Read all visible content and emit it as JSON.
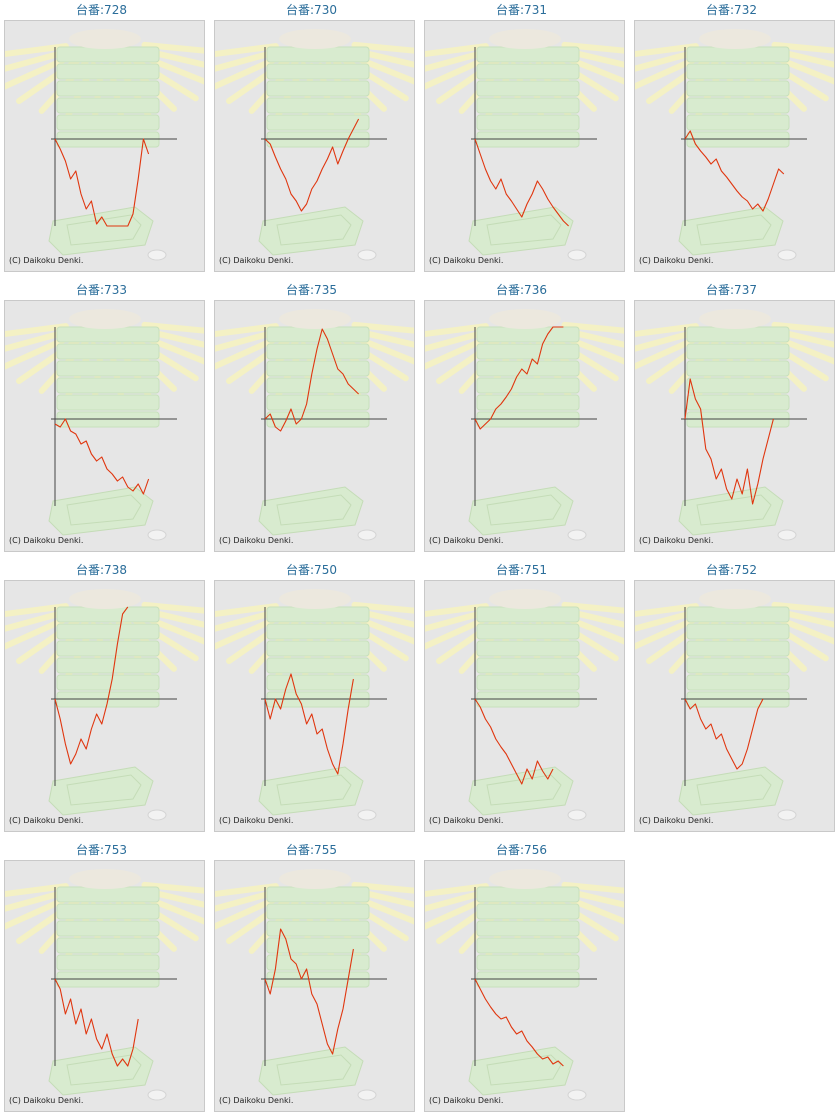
{
  "page": {
    "copyright": "(C) Daikoku Denki."
  },
  "chart_data": [
    {
      "type": "line",
      "title": "台番:728",
      "values": [
        0,
        -10,
        -22,
        -40,
        -32,
        -55,
        -70,
        -62,
        -85,
        -78,
        -95,
        -88,
        -98,
        -90,
        -100,
        -75,
        -40,
        0,
        -15
      ]
    },
    {
      "type": "line",
      "title": "台番:730",
      "values": [
        0,
        -5,
        -18,
        -30,
        -40,
        -55,
        -62,
        -72,
        -65,
        -50,
        -42,
        -30,
        -20,
        -8,
        -25,
        -12,
        0,
        10,
        20
      ]
    },
    {
      "type": "line",
      "title": "台番:731",
      "values": [
        0,
        -15,
        -30,
        -42,
        -50,
        -40,
        -55,
        -62,
        -70,
        -78,
        -65,
        -55,
        -42,
        -50,
        -60,
        -68,
        -75,
        -82,
        -88
      ]
    },
    {
      "type": "line",
      "title": "台番:732",
      "values": [
        0,
        8,
        -5,
        -12,
        -18,
        -25,
        -20,
        -32,
        -38,
        -45,
        -52,
        -58,
        -62,
        -70,
        -65,
        -72,
        -60,
        -45,
        -30,
        -35
      ]
    },
    {
      "type": "line",
      "title": "台番:733",
      "values": [
        -5,
        -8,
        0,
        -12,
        -15,
        -25,
        -22,
        -35,
        -42,
        -38,
        -50,
        -55,
        -62,
        -58,
        -68,
        -72,
        -65,
        -75,
        -60
      ]
    },
    {
      "type": "line",
      "title": "台番:735",
      "values": [
        0,
        5,
        -8,
        -12,
        -2,
        10,
        -5,
        0,
        15,
        45,
        70,
        90,
        80,
        65,
        50,
        45,
        35,
        30,
        25
      ]
    },
    {
      "type": "line",
      "title": "台番:736",
      "values": [
        0,
        -10,
        -5,
        0,
        10,
        15,
        22,
        30,
        42,
        50,
        45,
        60,
        55,
        75,
        85,
        95,
        110,
        120
      ]
    },
    {
      "type": "line",
      "title": "台番:737",
      "values": [
        0,
        40,
        20,
        10,
        -30,
        -40,
        -60,
        -50,
        -70,
        -80,
        -60,
        -75,
        -50,
        -85,
        -65,
        -40,
        -20,
        0
      ]
    },
    {
      "type": "line",
      "title": "台番:738",
      "values": [
        0,
        -20,
        -45,
        -65,
        -55,
        -40,
        -50,
        -30,
        -15,
        -25,
        -5,
        20,
        55,
        85,
        110
      ]
    },
    {
      "type": "line",
      "title": "台番:750",
      "values": [
        0,
        -20,
        0,
        -10,
        10,
        25,
        5,
        -5,
        -25,
        -15,
        -35,
        -30,
        -50,
        -65,
        -75,
        -45,
        -10,
        20
      ]
    },
    {
      "type": "line",
      "title": "台番:751",
      "values": [
        0,
        -8,
        -20,
        -28,
        -40,
        -48,
        -55,
        -65,
        -75,
        -85,
        -70,
        -80,
        -62,
        -72,
        -80,
        -70
      ]
    },
    {
      "type": "line",
      "title": "台番:752",
      "values": [
        0,
        -10,
        -5,
        -20,
        -30,
        -25,
        -40,
        -35,
        -50,
        -60,
        -70,
        -65,
        -50,
        -30,
        -10,
        0
      ]
    },
    {
      "type": "line",
      "title": "台番:753",
      "values": [
        0,
        -10,
        -35,
        -20,
        -45,
        -30,
        -55,
        -40,
        -60,
        -70,
        -55,
        -75,
        -95,
        -80,
        -90,
        -70,
        -40
      ]
    },
    {
      "type": "line",
      "title": "台番:755",
      "values": [
        0,
        -15,
        10,
        50,
        40,
        20,
        15,
        0,
        10,
        -15,
        -25,
        -45,
        -65,
        -75,
        -50,
        -30,
        0,
        30
      ]
    },
    {
      "type": "line",
      "title": "台番:756",
      "values": [
        0,
        -10,
        -20,
        -28,
        -35,
        -40,
        -38,
        -48,
        -55,
        -52,
        -62,
        -68,
        -75,
        -80,
        -78,
        -85,
        -82,
        -90
      ]
    }
  ]
}
